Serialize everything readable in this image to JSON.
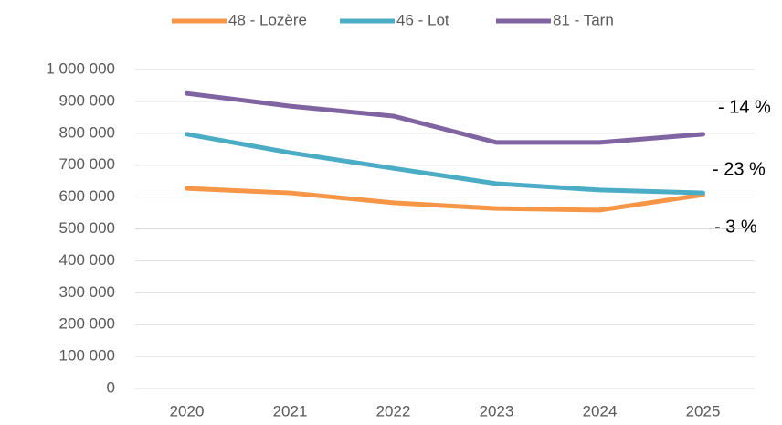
{
  "chart_data": {
    "type": "line",
    "categories": [
      "2020",
      "2021",
      "2022",
      "2023",
      "2024",
      "2025"
    ],
    "series": [
      {
        "name": "48 - Lozère",
        "color": "#f79646",
        "values": [
          627000,
          613000,
          582000,
          564000,
          559000,
          607000
        ]
      },
      {
        "name": "46 - Lot",
        "color": "#4bacc6",
        "values": [
          797000,
          739000,
          690000,
          642000,
          622000,
          613000
        ]
      },
      {
        "name": "81 - Tarn",
        "color": "#8064a2",
        "values": [
          925000,
          885000,
          854000,
          771000,
          771000,
          797000
        ]
      }
    ],
    "ylim": [
      0,
      1000000
    ],
    "yticks": [
      0,
      {
        "value": 100000,
        "label": "100 000"
      },
      {
        "value": 200000,
        "label": "200 000"
      },
      {
        "value": 300000,
        "label": "300 000"
      },
      {
        "value": 400000,
        "label": "400 000"
      },
      {
        "value": 500000,
        "label": "500 000"
      },
      {
        "value": 600000,
        "label": "600 000"
      },
      {
        "value": 700000,
        "label": "700 000"
      },
      {
        "value": 800000,
        "label": "800 000"
      },
      {
        "value": 900000,
        "label": "900 000"
      },
      {
        "value": 1000000,
        "label": "1 000 000"
      }
    ],
    "grid": true,
    "legend": "top",
    "annotations": [
      "- 14 %",
      "- 23 %",
      "- 3 %"
    ]
  }
}
